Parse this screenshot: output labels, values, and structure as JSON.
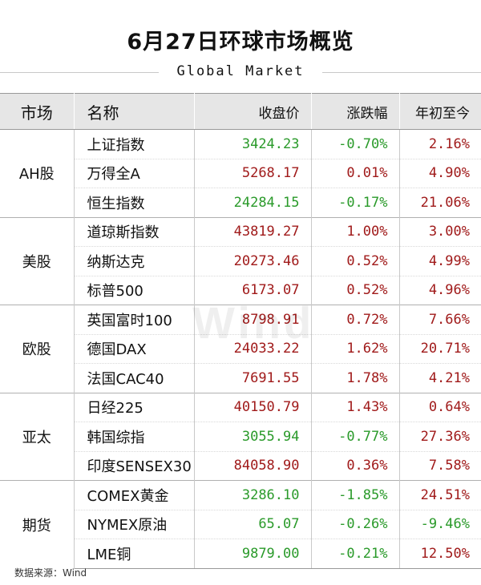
{
  "header": {
    "title": "6月27日环球市场概览",
    "subtitle": "Global Market"
  },
  "table": {
    "columns": [
      "市场",
      "名称",
      "收盘价",
      "涨跌幅",
      "年初至今"
    ]
  },
  "watermark": "Wind",
  "source": "数据来源：Wind",
  "colors": {
    "up": "#a01a1a",
    "down": "#2a9a2a",
    "header_bg": "#e6e6e6"
  },
  "chart_data": {
    "type": "table",
    "title": "6月27日环球市场概览",
    "subtitle": "Global Market",
    "columns": [
      "市场",
      "名称",
      "收盘价",
      "涨跌幅",
      "年初至今"
    ],
    "groups": [
      {
        "market": "AH股",
        "rows": [
          {
            "name": "上证指数",
            "close": "3424.23",
            "change": "-0.70%",
            "ytd": "2.16%",
            "close_dir": "down",
            "change_dir": "down",
            "ytd_dir": "up"
          },
          {
            "name": "万得全A",
            "close": "5268.17",
            "change": "0.01%",
            "ytd": "4.90%",
            "close_dir": "up",
            "change_dir": "up",
            "ytd_dir": "up"
          },
          {
            "name": "恒生指数",
            "close": "24284.15",
            "change": "-0.17%",
            "ytd": "21.06%",
            "close_dir": "down",
            "change_dir": "down",
            "ytd_dir": "up"
          }
        ]
      },
      {
        "market": "美股",
        "rows": [
          {
            "name": "道琼斯指数",
            "close": "43819.27",
            "change": "1.00%",
            "ytd": "3.00%",
            "close_dir": "up",
            "change_dir": "up",
            "ytd_dir": "up"
          },
          {
            "name": "纳斯达克",
            "close": "20273.46",
            "change": "0.52%",
            "ytd": "4.99%",
            "close_dir": "up",
            "change_dir": "up",
            "ytd_dir": "up"
          },
          {
            "name": "标普500",
            "close": "6173.07",
            "change": "0.52%",
            "ytd": "4.96%",
            "close_dir": "up",
            "change_dir": "up",
            "ytd_dir": "up"
          }
        ]
      },
      {
        "market": "欧股",
        "rows": [
          {
            "name": "英国富时100",
            "close": "8798.91",
            "change": "0.72%",
            "ytd": "7.66%",
            "close_dir": "up",
            "change_dir": "up",
            "ytd_dir": "up"
          },
          {
            "name": "德国DAX",
            "close": "24033.22",
            "change": "1.62%",
            "ytd": "20.71%",
            "close_dir": "up",
            "change_dir": "up",
            "ytd_dir": "up"
          },
          {
            "name": "法国CAC40",
            "close": "7691.55",
            "change": "1.78%",
            "ytd": "4.21%",
            "close_dir": "up",
            "change_dir": "up",
            "ytd_dir": "up"
          }
        ]
      },
      {
        "market": "亚太",
        "rows": [
          {
            "name": "日经225",
            "close": "40150.79",
            "change": "1.43%",
            "ytd": "0.64%",
            "close_dir": "up",
            "change_dir": "up",
            "ytd_dir": "up"
          },
          {
            "name": "韩国综指",
            "close": "3055.94",
            "change": "-0.77%",
            "ytd": "27.36%",
            "close_dir": "down",
            "change_dir": "down",
            "ytd_dir": "up"
          },
          {
            "name": "印度SENSEX30",
            "close": "84058.90",
            "change": "0.36%",
            "ytd": "7.58%",
            "close_dir": "up",
            "change_dir": "up",
            "ytd_dir": "up"
          }
        ]
      },
      {
        "market": "期货",
        "rows": [
          {
            "name": "COMEX黄金",
            "close": "3286.10",
            "change": "-1.85%",
            "ytd": "24.51%",
            "close_dir": "down",
            "change_dir": "down",
            "ytd_dir": "up"
          },
          {
            "name": "NYMEX原油",
            "close": "65.07",
            "change": "-0.26%",
            "ytd": "-9.46%",
            "close_dir": "down",
            "change_dir": "down",
            "ytd_dir": "down"
          },
          {
            "name": "LME铜",
            "close": "9879.00",
            "change": "-0.21%",
            "ytd": "12.50%",
            "close_dir": "down",
            "change_dir": "down",
            "ytd_dir": "up"
          }
        ]
      }
    ]
  }
}
